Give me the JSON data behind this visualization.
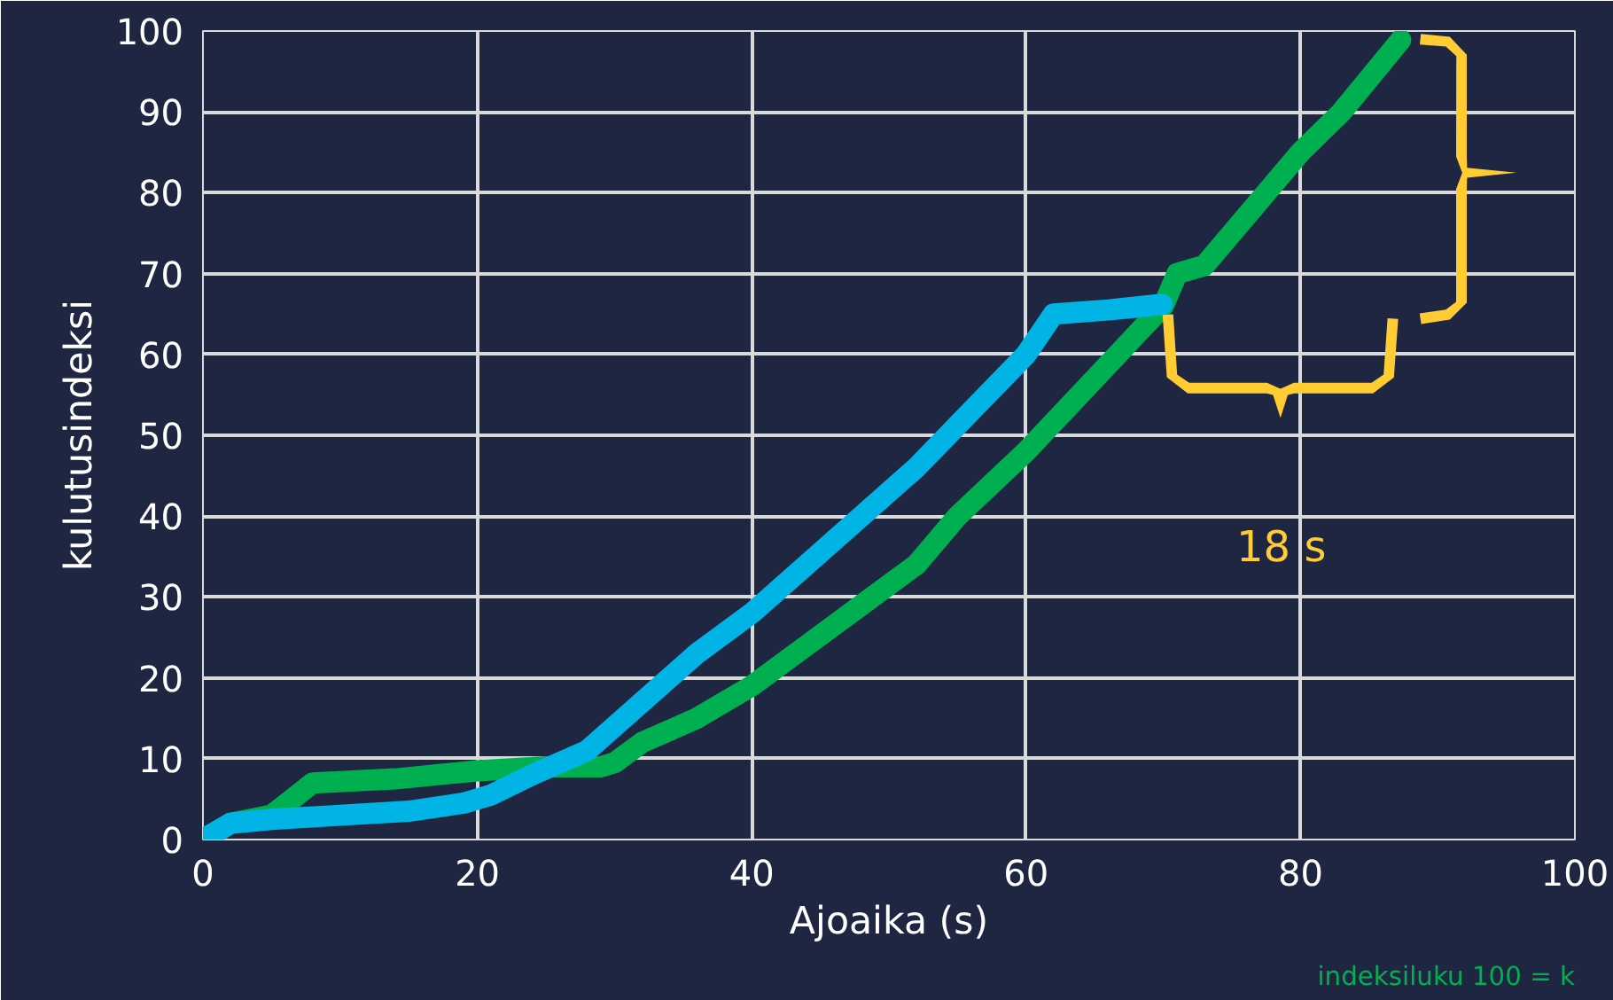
{
  "chart_data": {
    "type": "line",
    "xlabel": "Ajoaika (s)",
    "ylabel": "kulutusindeksi",
    "xlim": [
      0,
      100
    ],
    "ylim": [
      0,
      100
    ],
    "xticks": [
      0,
      20,
      40,
      60,
      80,
      100
    ],
    "yticks": [
      0,
      10,
      20,
      30,
      40,
      50,
      60,
      70,
      80,
      90,
      100
    ],
    "grid": true,
    "line_style": "solid",
    "series": [
      {
        "color": "#00b050",
        "x": [
          0,
          2,
          5,
          8,
          14,
          20,
          25,
          29,
          30,
          32,
          36,
          40,
          44,
          48,
          52,
          53,
          55,
          60,
          65,
          70,
          71,
          73,
          76,
          80,
          83,
          87.3
        ],
        "values": [
          0,
          2,
          3,
          7,
          7.5,
          8.5,
          9,
          9,
          9.5,
          12,
          15,
          19,
          24,
          29,
          34,
          36,
          40,
          48,
          57,
          66,
          70,
          71,
          77,
          85,
          90,
          98.9
        ]
      },
      {
        "color": "#00b4e6",
        "x": [
          0,
          2,
          5,
          10,
          15,
          19,
          21,
          24,
          28,
          32,
          36,
          40,
          44,
          48,
          52,
          56,
          60,
          62,
          66,
          69.9
        ],
        "values": [
          0,
          2,
          2.5,
          3,
          3.5,
          4.5,
          5.5,
          8,
          11,
          17,
          23,
          28,
          34,
          40,
          46,
          53,
          60,
          65,
          65.5,
          66.2
        ]
      }
    ],
    "annotations": [
      "18 s",
      "indeksiluku 100 = k"
    ]
  }
}
